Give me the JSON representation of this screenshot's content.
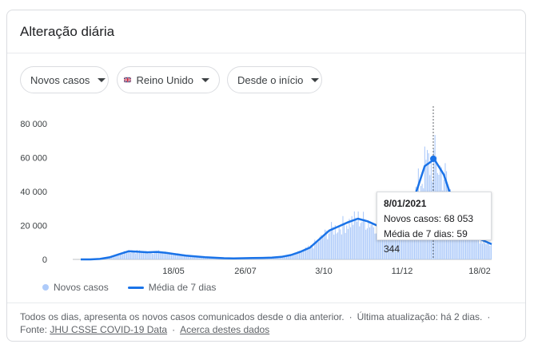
{
  "card": {
    "title": "Alteração diária"
  },
  "filters": [
    {
      "label": "Novos casos"
    },
    {
      "label": "Reino Unido"
    },
    {
      "label": "Desde o início"
    }
  ],
  "tooltip": {
    "date": "8/01/2021",
    "cases_label": "Novos casos: 68 053",
    "avg_label": "Média de 7 dias: 59 344"
  },
  "legend": {
    "bars": "Novos casos",
    "line": "Média de 7 dias"
  },
  "footer": {
    "line1": "Todos os dias, apresenta os novos casos comunicados desde o dia anterior.",
    "updated": "Última atualização: há 2 dias.",
    "source_prefix": "Fonte:",
    "source_link": "JHU CSSE COVID-19 Data",
    "about_link": "Acerca destes dados"
  },
  "colors": {
    "line": "#1a73e8",
    "bars": "#aecbfa",
    "grid": "#e0e0e0"
  },
  "chart_data": {
    "type": "bar",
    "ylim": [
      0,
      80000
    ],
    "yticks": [
      "0",
      "20 000",
      "40 000",
      "60 000",
      "80 000"
    ],
    "xticks": [
      "18/05",
      "26/07",
      "3/10",
      "11/12",
      "18/02"
    ],
    "series": [
      {
        "name": "Novos casos",
        "type": "bar"
      },
      {
        "name": "Média de 7 dias",
        "type": "line"
      }
    ],
    "weekly_avg": [
      0,
      0,
      300,
      1200,
      3000,
      4800,
      4500,
      4200,
      4400,
      3800,
      3000,
      2200,
      1800,
      1300,
      1000,
      700,
      600,
      700,
      800,
      900,
      1100,
      1500,
      2600,
      4500,
      7000,
      12000,
      17000,
      19500,
      22000,
      24000,
      22500,
      20000,
      17000,
      18000,
      24000,
      38000,
      55000,
      59000,
      50000,
      33000,
      22000,
      15000,
      11500,
      9000
    ],
    "highlight": {
      "date": "8/01/2021",
      "new_cases": 68053,
      "avg_7_days": 59344
    }
  }
}
